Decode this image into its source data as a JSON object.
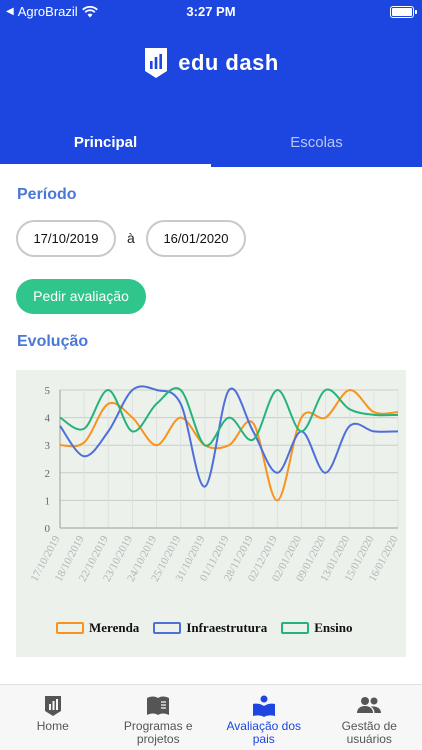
{
  "status_bar": {
    "carrier": "AgroBrazil",
    "time": "3:27 PM"
  },
  "app": {
    "logo_text": "edu dash"
  },
  "tabs": [
    {
      "label": "Principal",
      "active": true
    },
    {
      "label": "Escolas",
      "active": false
    }
  ],
  "periodo": {
    "title": "Período",
    "start_date": "17/10/2019",
    "separator": "à",
    "end_date": "16/01/2020"
  },
  "action_button": "Pedir avaliação",
  "evolucao": {
    "title": "Evolução"
  },
  "chart_data": {
    "type": "line",
    "categories": [
      "17/10/2019",
      "18/10/2019",
      "22/10/2019",
      "23/10/2019",
      "24/10/2019",
      "25/10/2019",
      "31/10/2019",
      "01/11/2019",
      "28/11/2019",
      "02/12/2019",
      "02/01/2020",
      "09/01/2020",
      "13/01/2020",
      "15/01/2020",
      "16/01/2020"
    ],
    "ylim": [
      0,
      5
    ],
    "yticks": [
      0,
      1,
      2,
      3,
      4,
      5
    ],
    "series": [
      {
        "name": "Merenda",
        "color": "#f7931e",
        "values": [
          3,
          3.1,
          4.5,
          4,
          3,
          4,
          3,
          3,
          3.8,
          1,
          4,
          4,
          5,
          4.2,
          4.2
        ]
      },
      {
        "name": "Infraestrutura",
        "color": "#4e6fd9",
        "values": [
          3.7,
          2.6,
          3.5,
          5,
          5,
          4.5,
          1.5,
          5,
          3.5,
          2,
          3.5,
          2,
          3.7,
          3.5,
          3.5
        ]
      },
      {
        "name": "Ensino",
        "color": "#26b37a",
        "values": [
          4,
          3.6,
          5,
          3.5,
          4.5,
          5,
          3,
          4,
          3.2,
          5,
          3.5,
          5,
          4.3,
          4.1,
          4.1
        ]
      }
    ],
    "grid": true,
    "legend_position": "bottom"
  },
  "bottom_nav": [
    {
      "label": "Home",
      "active": false
    },
    {
      "label": "Programas e\nprojetos",
      "active": false
    },
    {
      "label": "Avaliação dos\npais",
      "active": true
    },
    {
      "label": "Gestão de\nusuários",
      "active": false
    }
  ]
}
